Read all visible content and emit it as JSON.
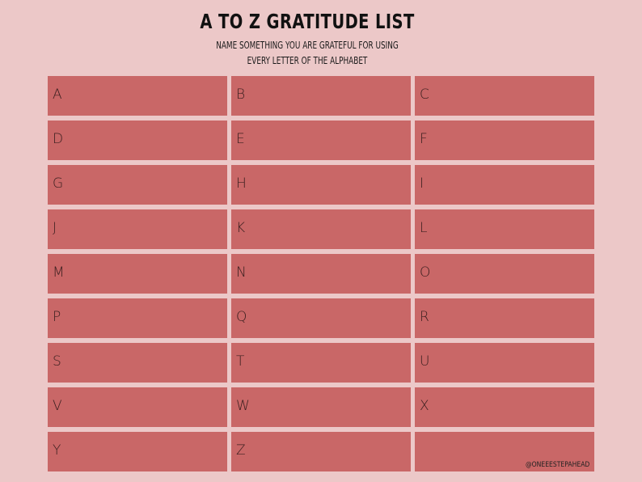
{
  "header": {
    "title": "A TO Z GRATITUDE LIST",
    "subtitle_line1": "NAME SOMETHING YOU ARE GRATEFUL FOR USING",
    "subtitle_line2": "EVERY LETTER OF THE ALPHABET"
  },
  "grid": {
    "cells": [
      {
        "letter": "A"
      },
      {
        "letter": "B"
      },
      {
        "letter": "C"
      },
      {
        "letter": "D"
      },
      {
        "letter": "E"
      },
      {
        "letter": "F"
      },
      {
        "letter": "G"
      },
      {
        "letter": "H"
      },
      {
        "letter": "I"
      },
      {
        "letter": "J"
      },
      {
        "letter": "K"
      },
      {
        "letter": "L"
      },
      {
        "letter": "M"
      },
      {
        "letter": "N"
      },
      {
        "letter": "O"
      },
      {
        "letter": "P"
      },
      {
        "letter": "Q"
      },
      {
        "letter": "R"
      },
      {
        "letter": "S"
      },
      {
        "letter": "T"
      },
      {
        "letter": "U"
      },
      {
        "letter": "V"
      },
      {
        "letter": "W"
      },
      {
        "letter": "X"
      },
      {
        "letter": "Y"
      },
      {
        "letter": "Z"
      },
      {
        "letter": ""
      }
    ]
  },
  "watermark": "@ONEEESTEPAHEAD",
  "colors": {
    "background": "#ecc8c8",
    "cell": "#c96767",
    "text": "#111111"
  }
}
